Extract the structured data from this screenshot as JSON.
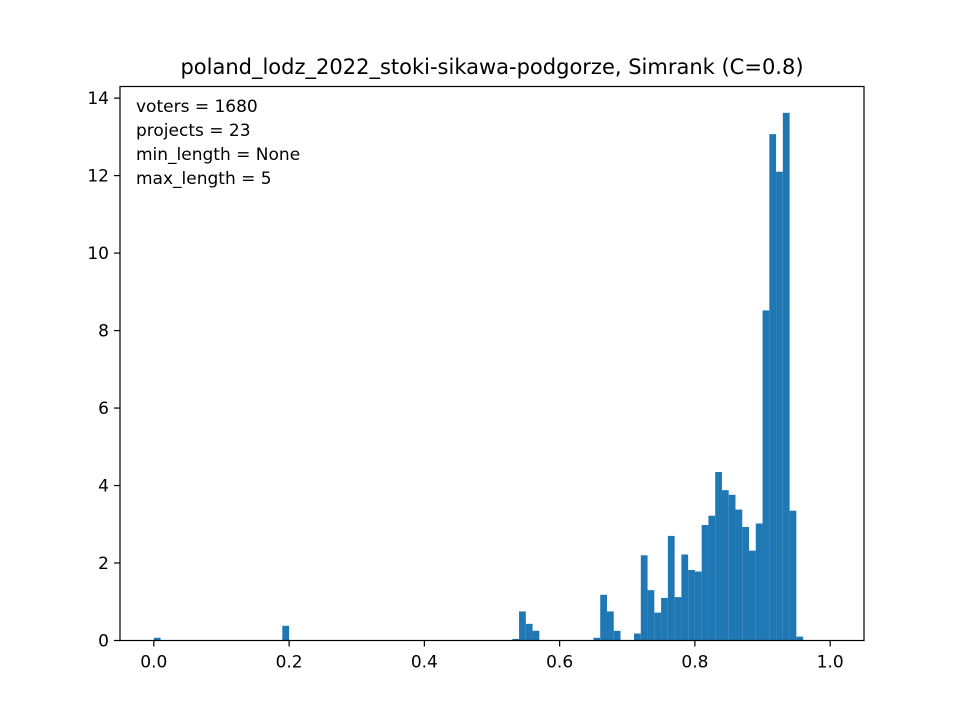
{
  "chart_data": {
    "type": "bar",
    "title": "poland_lodz_2022_stoki-sikawa-podgorze, Simrank (C=0.8)",
    "xlabel": "",
    "ylabel": "",
    "xlim": [
      -0.05,
      1.05
    ],
    "ylim": [
      0,
      14.3
    ],
    "grid": false,
    "color": "#1f77b4",
    "bin_width": 0.01,
    "xticks": [
      0.0,
      0.2,
      0.4,
      0.6,
      0.8,
      1.0
    ],
    "xtick_labels": [
      "0.0",
      "0.2",
      "0.4",
      "0.6",
      "0.8",
      "1.0"
    ],
    "yticks": [
      0,
      2,
      4,
      6,
      8,
      10,
      12,
      14
    ],
    "ytick_labels": [
      "0",
      "2",
      "4",
      "6",
      "8",
      "10",
      "12",
      "14"
    ],
    "annotations": [
      "voters = 1680",
      "projects = 23",
      "min_length = None",
      "max_length = 5"
    ],
    "bins": [
      {
        "x": 0.0,
        "y": 0.07
      },
      {
        "x": 0.19,
        "y": 0.38
      },
      {
        "x": 0.53,
        "y": 0.04
      },
      {
        "x": 0.54,
        "y": 0.75
      },
      {
        "x": 0.55,
        "y": 0.43
      },
      {
        "x": 0.56,
        "y": 0.25
      },
      {
        "x": 0.65,
        "y": 0.07
      },
      {
        "x": 0.66,
        "y": 1.18
      },
      {
        "x": 0.67,
        "y": 0.75
      },
      {
        "x": 0.68,
        "y": 0.25
      },
      {
        "x": 0.71,
        "y": 0.18
      },
      {
        "x": 0.72,
        "y": 2.2
      },
      {
        "x": 0.73,
        "y": 1.3
      },
      {
        "x": 0.74,
        "y": 0.72
      },
      {
        "x": 0.75,
        "y": 1.1
      },
      {
        "x": 0.76,
        "y": 2.7
      },
      {
        "x": 0.77,
        "y": 1.12
      },
      {
        "x": 0.78,
        "y": 2.22
      },
      {
        "x": 0.79,
        "y": 1.82
      },
      {
        "x": 0.8,
        "y": 1.78
      },
      {
        "x": 0.81,
        "y": 2.98
      },
      {
        "x": 0.82,
        "y": 3.22
      },
      {
        "x": 0.83,
        "y": 4.35
      },
      {
        "x": 0.84,
        "y": 3.88
      },
      {
        "x": 0.85,
        "y": 3.76
      },
      {
        "x": 0.86,
        "y": 3.38
      },
      {
        "x": 0.87,
        "y": 2.93
      },
      {
        "x": 0.88,
        "y": 2.32
      },
      {
        "x": 0.89,
        "y": 3.02
      },
      {
        "x": 0.9,
        "y": 8.52
      },
      {
        "x": 0.91,
        "y": 13.07
      },
      {
        "x": 0.92,
        "y": 12.1
      },
      {
        "x": 0.93,
        "y": 13.62
      },
      {
        "x": 0.94,
        "y": 3.35
      },
      {
        "x": 0.95,
        "y": 0.1
      }
    ]
  }
}
